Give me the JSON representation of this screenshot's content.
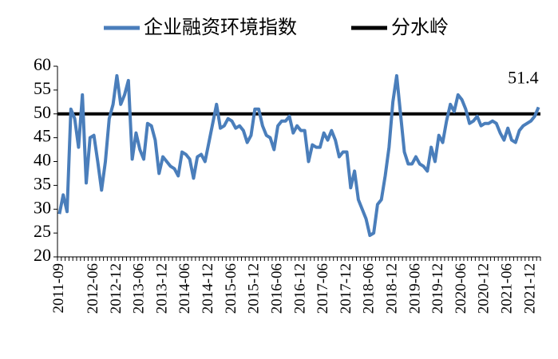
{
  "chart_data": {
    "type": "line",
    "categories": [
      "2011-09",
      null,
      null,
      null,
      null,
      null,
      null,
      null,
      null,
      "2012-06",
      null,
      null,
      null,
      null,
      null,
      "2012-12",
      null,
      null,
      null,
      null,
      null,
      "2013-06",
      null,
      null,
      null,
      null,
      null,
      "2013-12",
      null,
      null,
      null,
      null,
      null,
      "2014-06",
      null,
      null,
      null,
      null,
      null,
      "2014-12",
      null,
      null,
      null,
      null,
      null,
      "2015-06",
      null,
      null,
      null,
      null,
      null,
      "2015-12",
      null,
      null,
      null,
      null,
      null,
      "2016-06",
      null,
      null,
      null,
      null,
      null,
      "2016-12",
      null,
      null,
      null,
      null,
      null,
      "2017-06",
      null,
      null,
      null,
      null,
      null,
      "2017-12",
      null,
      null,
      null,
      null,
      null,
      "2018-06",
      null,
      null,
      null,
      null,
      null,
      "2018-12",
      null,
      null,
      null,
      null,
      null,
      "2019-06",
      null,
      null,
      null,
      null,
      null,
      "2019-12",
      null,
      null,
      null,
      null,
      null,
      "2020-06",
      null,
      null,
      null,
      null,
      null,
      "2020-12",
      null,
      null,
      null,
      null,
      null,
      "2021-06",
      null,
      null,
      null,
      null,
      null,
      "2021-12",
      null,
      null
    ],
    "series": [
      {
        "name": "企业融资环境指数",
        "color": "#4a7ebb",
        "values": [
          29,
          33,
          29.5,
          51,
          49,
          43,
          54,
          35.5,
          45,
          45.5,
          40,
          34,
          40,
          49,
          52,
          58,
          52,
          54,
          57,
          40.5,
          46,
          42.5,
          40.5,
          48,
          47.5,
          44.5,
          37.5,
          41,
          40,
          39,
          38.5,
          37,
          42,
          41.5,
          40.5,
          36.5,
          41,
          41.5,
          40,
          44,
          48,
          52,
          47,
          47.5,
          49,
          48.5,
          47,
          47.5,
          46.5,
          44,
          45.5,
          51,
          51,
          47.5,
          45.5,
          45,
          42.5,
          47.5,
          48.5,
          48.5,
          49.5,
          46,
          47.5,
          46.5,
          46.5,
          40,
          43.5,
          43,
          43,
          46,
          44.5,
          46.5,
          44.5,
          41,
          42,
          42,
          34.5,
          38,
          32,
          30,
          28,
          24.5,
          25,
          31,
          32,
          37,
          43,
          52.5,
          58,
          50,
          42,
          39.5,
          39.5,
          41,
          39.5,
          39,
          38,
          43,
          40,
          45.5,
          44,
          48.5,
          52,
          50.5,
          54,
          53,
          51,
          48,
          48.5,
          49.5,
          47.5,
          48,
          48,
          48.5,
          48,
          46,
          44.5,
          47,
          44.5,
          44,
          46.5,
          47.5,
          48,
          48.5,
          49.5,
          51.4
        ]
      }
    ],
    "hline": {
      "name": "分水岭",
      "value": 50,
      "color": "#000000"
    },
    "ylim": [
      20,
      60
    ],
    "yticks": [
      20,
      25,
      30,
      35,
      40,
      45,
      50,
      55,
      60
    ]
  }
}
